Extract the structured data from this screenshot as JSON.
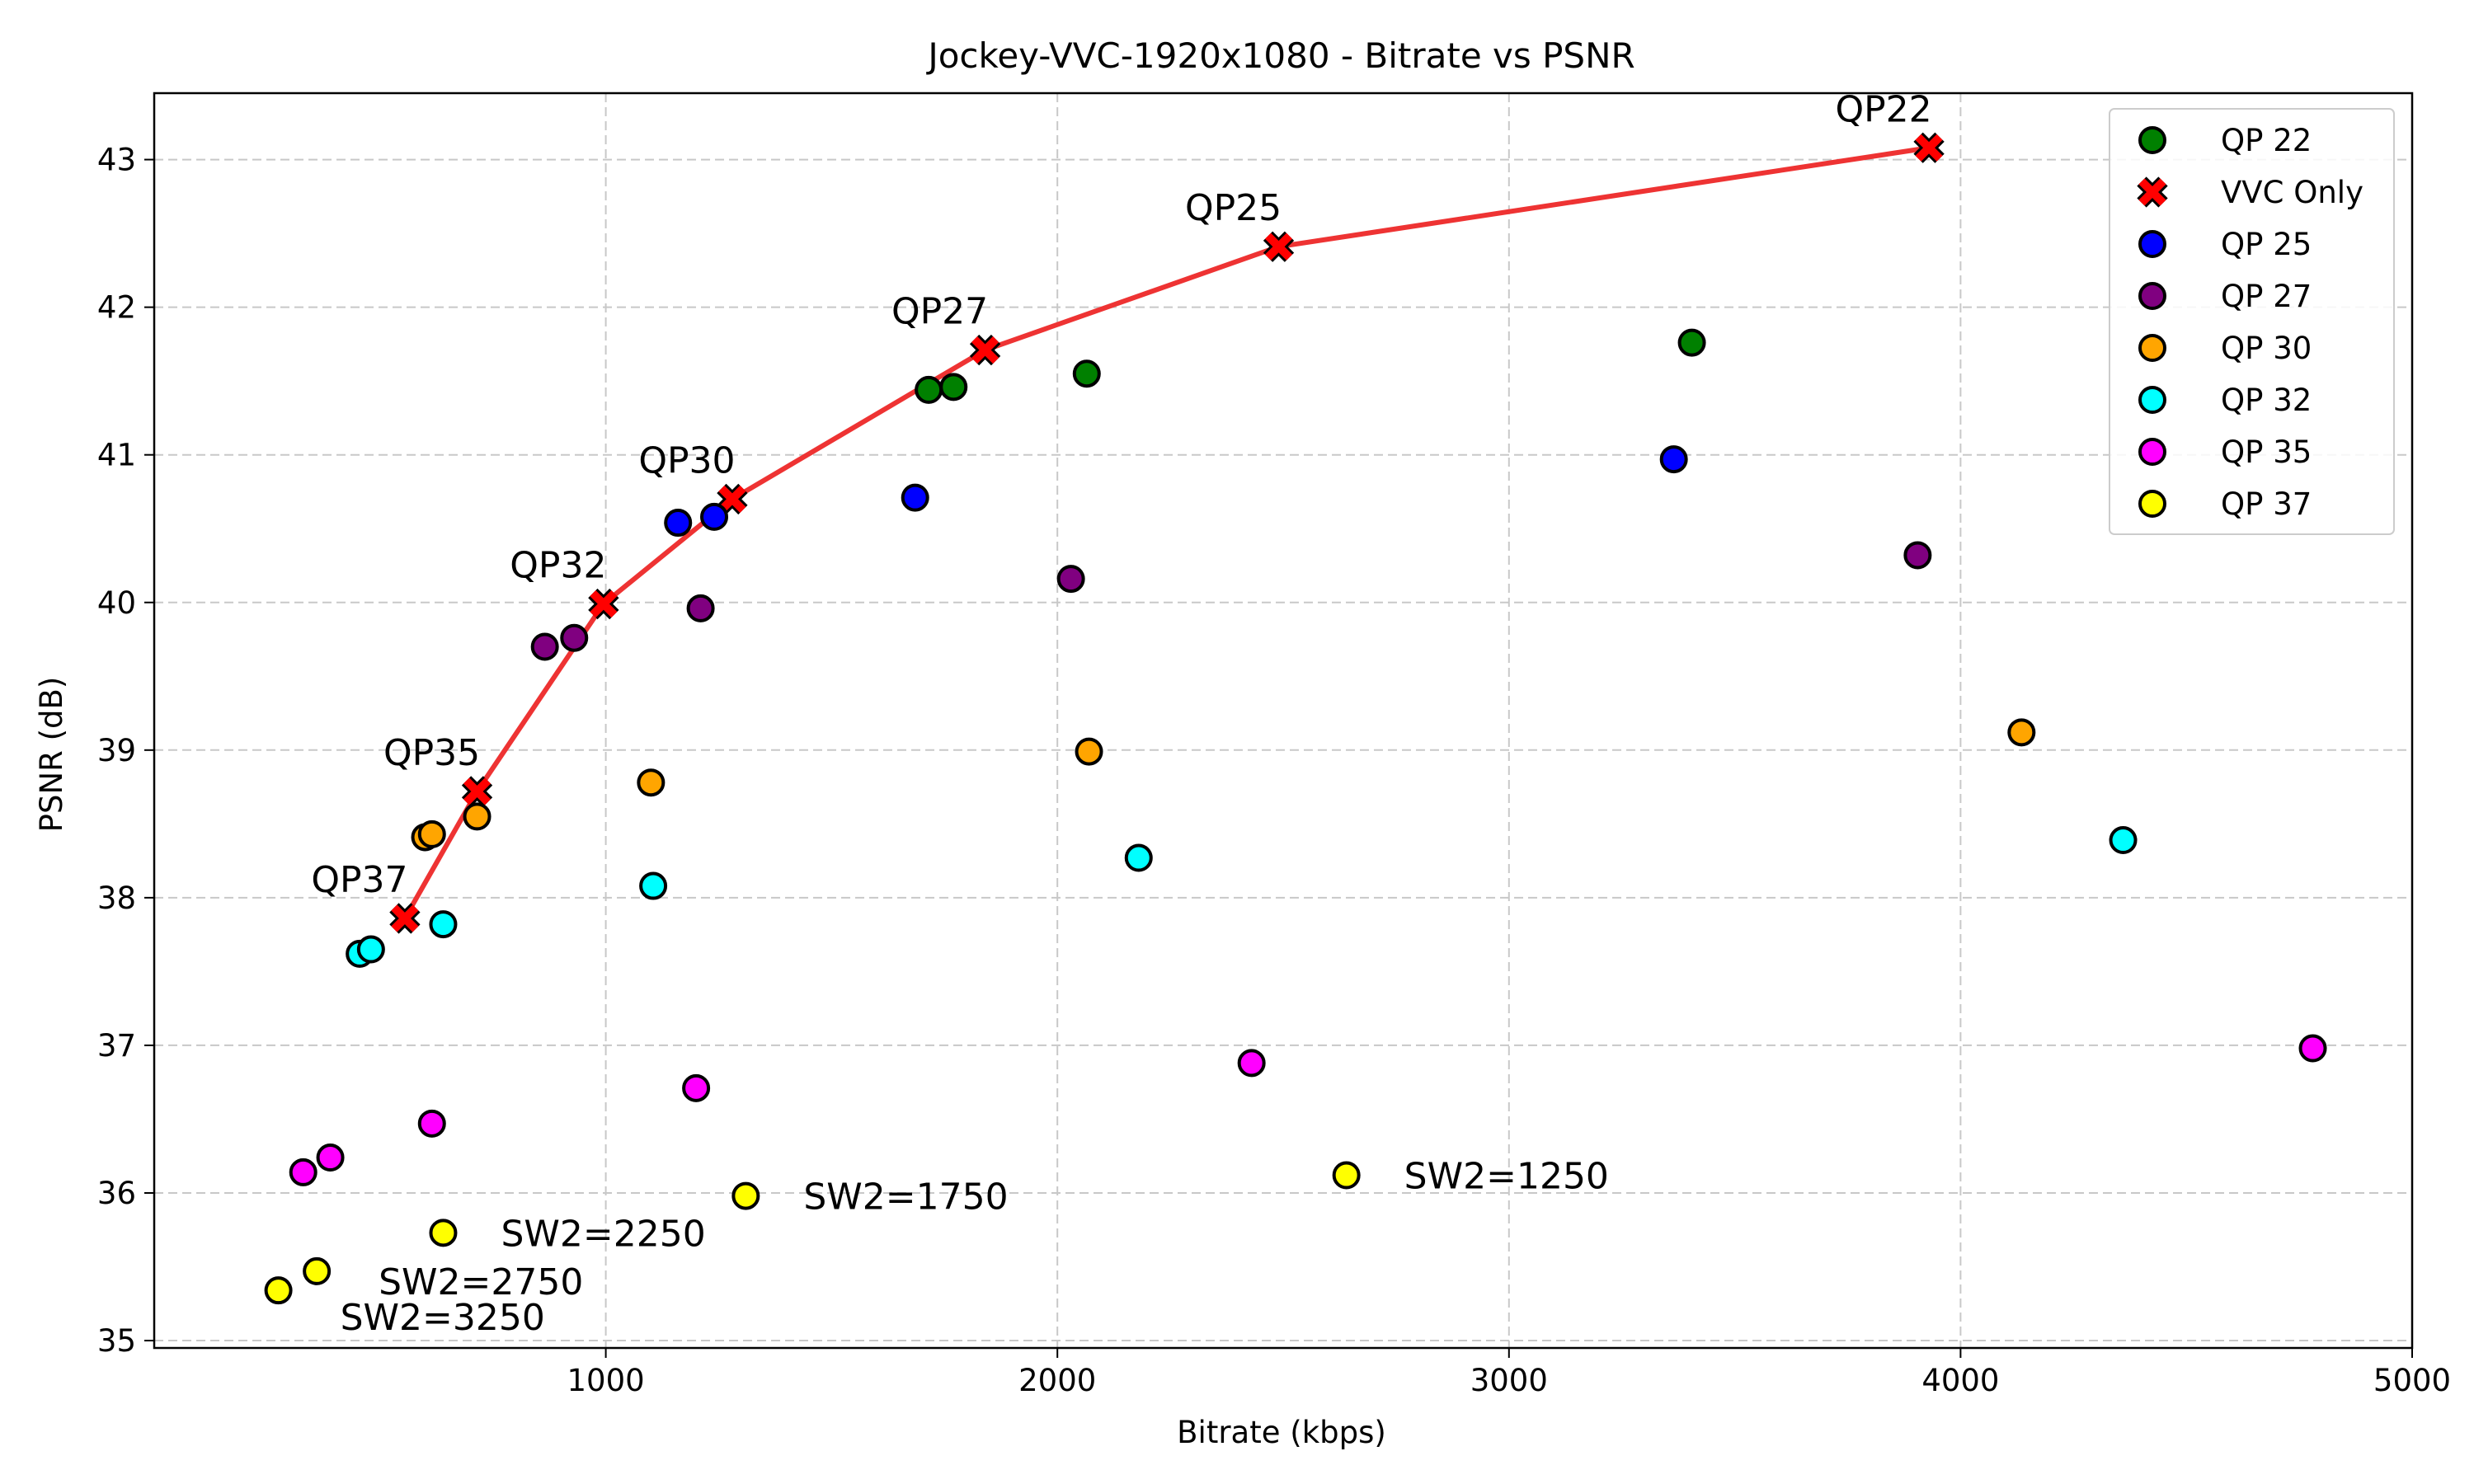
{
  "chart_data": {
    "type": "scatter",
    "title": "Jockey-VVC-1920x1080 - Bitrate vs PSNR",
    "xlabel": "Bitrate (kbps)",
    "ylabel": "PSNR (dB)",
    "xlim": [
      0,
      5000
    ],
    "ylim": [
      34.95,
      43.45
    ],
    "xticks": [
      1000,
      2000,
      3000,
      4000,
      5000
    ],
    "yticks": [
      35,
      36,
      37,
      38,
      39,
      40,
      41,
      42,
      43
    ],
    "xtick_labels": [
      "1000",
      "2000",
      "3000",
      "4000",
      "5000"
    ],
    "ytick_labels": [
      "35",
      "36",
      "37",
      "38",
      "39",
      "40",
      "41",
      "42",
      "43"
    ],
    "grid": true,
    "legend_position": "top-right",
    "series": [
      {
        "name": "QP 22",
        "color": "#008000",
        "marker": "circle",
        "points": [
          [
            1715,
            41.44
          ],
          [
            1770,
            41.46
          ],
          [
            2065,
            41.55
          ],
          [
            3405,
            41.76
          ]
        ]
      },
      {
        "name": "VVC Only",
        "color": "#ff0000",
        "marker": "x",
        "line_color": "#ee3333",
        "points": [
          [
            555,
            37.86
          ],
          [
            715,
            38.72
          ],
          [
            995,
            39.99
          ],
          [
            1280,
            40.7
          ],
          [
            1840,
            41.71
          ],
          [
            2490,
            42.41
          ],
          [
            3930,
            43.08
          ]
        ],
        "point_labels": [
          "QP37",
          "QP35",
          "QP32",
          "QP30",
          "QP27",
          "QP25",
          "QP22"
        ]
      },
      {
        "name": "QP 25",
        "color": "#0000ff",
        "marker": "circle",
        "points": [
          [
            1160,
            40.54
          ],
          [
            1240,
            40.58
          ],
          [
            1685,
            40.71
          ],
          [
            3365,
            40.97
          ]
        ]
      },
      {
        "name": "QP 27",
        "color": "#800080",
        "marker": "circle",
        "points": [
          [
            865,
            39.7
          ],
          [
            930,
            39.76
          ],
          [
            1210,
            39.96
          ],
          [
            2030,
            40.16
          ],
          [
            3905,
            40.32
          ]
        ]
      },
      {
        "name": "QP 30",
        "color": "#ffa500",
        "marker": "circle",
        "points": [
          [
            600,
            38.41
          ],
          [
            615,
            38.43
          ],
          [
            715,
            38.55
          ],
          [
            1100,
            38.78
          ],
          [
            2070,
            38.99
          ],
          [
            4135,
            39.12
          ]
        ]
      },
      {
        "name": "QP 32",
        "color": "#00ffff",
        "marker": "circle",
        "points": [
          [
            455,
            37.62
          ],
          [
            480,
            37.65
          ],
          [
            640,
            37.82
          ],
          [
            1105,
            38.08
          ],
          [
            2180,
            38.27
          ],
          [
            4360,
            38.39
          ]
        ]
      },
      {
        "name": "QP 35",
        "color": "#ff00ff",
        "marker": "circle",
        "points": [
          [
            330,
            36.14
          ],
          [
            390,
            36.24
          ],
          [
            615,
            36.47
          ],
          [
            1200,
            36.71
          ],
          [
            2430,
            36.88
          ],
          [
            4780,
            36.98
          ]
        ]
      },
      {
        "name": "QP 37",
        "color": "#ffff00",
        "marker": "circle",
        "points": [
          [
            275,
            35.34
          ],
          [
            360,
            35.47
          ],
          [
            640,
            35.73
          ],
          [
            1310,
            35.98
          ],
          [
            2640,
            36.12
          ]
        ],
        "point_labels": [
          "SW2=3250",
          "SW2=2750",
          "SW2=2250",
          "SW2=1750",
          "SW2=1250"
        ]
      }
    ]
  }
}
